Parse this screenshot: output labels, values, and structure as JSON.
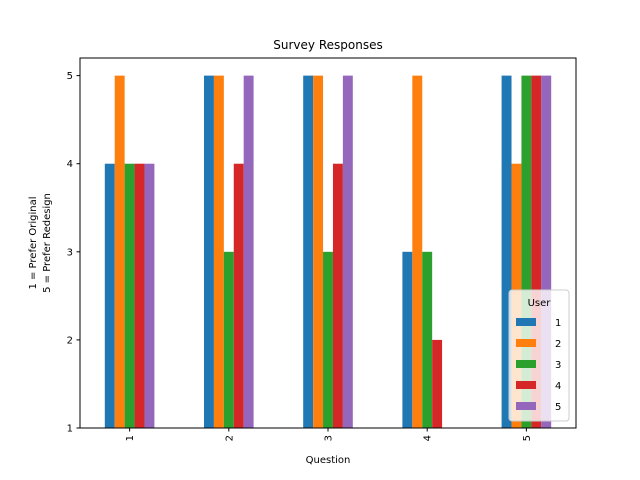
{
  "chart_data": {
    "type": "bar",
    "title": "Survey Responses",
    "xlabel": "Question",
    "ylabel_lines": [
      "1 = Prefer Original",
      "5 = Prefer Redesign"
    ],
    "categories": [
      "1",
      "2",
      "3",
      "4",
      "5"
    ],
    "series": [
      {
        "name": "1",
        "color": "#1f77b4",
        "values": [
          4,
          5,
          5,
          3,
          5
        ]
      },
      {
        "name": "2",
        "color": "#ff7f0e",
        "values": [
          5,
          5,
          5,
          5,
          4
        ]
      },
      {
        "name": "3",
        "color": "#2ca02c",
        "values": [
          4,
          3,
          3,
          3,
          5
        ]
      },
      {
        "name": "4",
        "color": "#d62728",
        "values": [
          4,
          4,
          4,
          2,
          5
        ]
      },
      {
        "name": "5",
        "color": "#9467bd",
        "values": [
          4,
          5,
          5,
          1,
          5
        ]
      }
    ],
    "ylim": [
      1,
      5.2
    ],
    "yticks": [
      1,
      2,
      3,
      4,
      5
    ],
    "legend": {
      "title": "User",
      "placement": "lower-right"
    },
    "grid": false
  }
}
